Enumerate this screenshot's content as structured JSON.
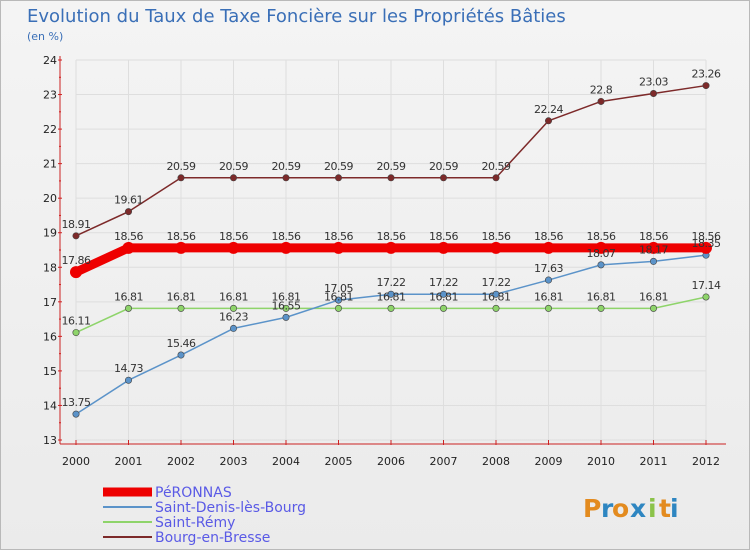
{
  "chart_data": {
    "type": "line",
    "title": "Evolution du Taux de Taxe Foncière sur les Propriétés Bâties",
    "ylabel": "(en %)",
    "xlabel": "",
    "ylim": [
      13,
      24
    ],
    "y_ticks": [
      "13",
      "14",
      "15",
      "16",
      "17",
      "18",
      "19",
      "20",
      "21",
      "22",
      "23",
      "24"
    ],
    "categories": [
      "2000",
      "2001",
      "2002",
      "2003",
      "2004",
      "2005",
      "2006",
      "2007",
      "2008",
      "2009",
      "2010",
      "2011",
      "2012"
    ],
    "legend_position": "bottom-left",
    "series": [
      {
        "name": "Bourg-en-Bresse",
        "color": "#7d2a2a",
        "values": [
          18.91,
          19.61,
          20.59,
          20.59,
          20.59,
          20.59,
          20.59,
          20.59,
          20.59,
          22.24,
          22.8,
          23.03,
          23.26
        ],
        "labels": [
          "18.91",
          "19.61",
          "20.59",
          "20.59",
          "20.59",
          "20.59",
          "20.59",
          "20.59",
          "20.59",
          "22.24",
          "22.8",
          "23.03",
          "23.26"
        ]
      },
      {
        "name": "Saint-Rémy",
        "color": "#8ed46a",
        "values": [
          16.11,
          16.81,
          16.81,
          16.81,
          16.81,
          16.81,
          16.81,
          16.81,
          16.81,
          16.81,
          16.81,
          16.81,
          17.14
        ],
        "labels": [
          "16.11",
          "16.81",
          "16.81",
          "16.81",
          "16.81",
          "16.81",
          "16.81",
          "16.81",
          "16.81",
          "16.81",
          "16.81",
          "16.81",
          "17.14"
        ]
      },
      {
        "name": "Saint-Denis-lès-Bourg",
        "color": "#5b93c9",
        "values": [
          13.75,
          14.73,
          15.46,
          16.23,
          16.55,
          17.05,
          17.22,
          17.22,
          17.22,
          17.63,
          18.07,
          18.17,
          18.35
        ],
        "labels": [
          "13.75",
          "14.73",
          "15.46",
          "16.23",
          "16.55",
          "17.05",
          "17.22",
          "17.22",
          "17.22",
          "17.63",
          "18.07",
          "18.17",
          "18.35"
        ]
      },
      {
        "name": "PéRONNAS",
        "color": "#ee0000",
        "values": [
          17.86,
          18.56,
          18.56,
          18.56,
          18.56,
          18.56,
          18.56,
          18.56,
          18.56,
          18.56,
          18.56,
          18.56,
          18.56
        ],
        "labels": [
          "17.86",
          "18.56",
          "18.56",
          "18.56",
          "18.56",
          "18.56",
          "18.56",
          "18.56",
          "18.56",
          "18.56",
          "18.56",
          "18.56",
          "18.56"
        ]
      }
    ],
    "legend_order": [
      3,
      2,
      1,
      0
    ]
  },
  "branding": {
    "logo_letters": [
      "P",
      "r",
      "o",
      "x",
      "i",
      "t",
      "i"
    ],
    "logo_colors": [
      "#e38b1f",
      "#2e86c1",
      "#e38b1f",
      "#2e86c1",
      "#8bc34a",
      "#e38b1f",
      "#2e86c1"
    ]
  }
}
